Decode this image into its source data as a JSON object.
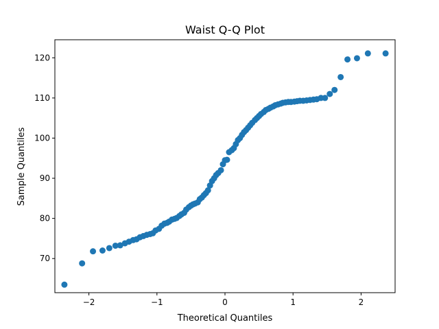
{
  "chart_data": {
    "type": "scatter",
    "title": "Waist Q-Q Plot",
    "xlabel": "Theoretical Quantiles",
    "ylabel": "Sample Quantiles",
    "xlim": [
      -2.5,
      2.5
    ],
    "ylim": [
      61.5,
      124.5
    ],
    "xticks": [
      -2,
      -1,
      0,
      1,
      2
    ],
    "yticks": [
      70,
      80,
      90,
      100,
      110,
      120
    ],
    "xtick_labels": [
      "−2",
      "−1",
      "0",
      "1",
      "2"
    ],
    "ytick_labels": [
      "70",
      "80",
      "90",
      "100",
      "110",
      "120"
    ],
    "grid": false,
    "marker_color": "#1f77b4",
    "series": [
      {
        "x": [
          -2.36,
          -2.1,
          -1.94,
          -1.8,
          -1.7,
          -1.61,
          -1.54,
          -1.47,
          -1.41,
          -1.35,
          -1.3,
          -1.25,
          -1.2,
          -1.15,
          -1.1,
          -1.06,
          -1.02,
          -0.97,
          -0.93,
          -0.89,
          -0.85,
          -0.82,
          -0.78,
          -0.74,
          -0.71,
          -0.67,
          -0.64,
          -0.6,
          -0.57,
          -0.53,
          -0.5,
          -0.47,
          -0.44,
          -0.4,
          -0.37,
          -0.34,
          -0.31,
          -0.28,
          -0.25,
          -0.22,
          -0.19,
          -0.16,
          -0.13,
          -0.1,
          -0.06,
          -0.03,
          0.0,
          0.03,
          0.06,
          0.1,
          0.13,
          0.16,
          0.19,
          0.22,
          0.25,
          0.28,
          0.31,
          0.34,
          0.37,
          0.4,
          0.44,
          0.47,
          0.5,
          0.53,
          0.57,
          0.6,
          0.64,
          0.67,
          0.71,
          0.74,
          0.78,
          0.82,
          0.85,
          0.89,
          0.93,
          0.97,
          1.02,
          1.06,
          1.1,
          1.15,
          1.2,
          1.25,
          1.3,
          1.35,
          1.41,
          1.47,
          1.54,
          1.61,
          1.7,
          1.8,
          1.94,
          2.1,
          2.36
        ],
        "y": [
          63.5,
          68.8,
          71.8,
          72.0,
          72.6,
          73.2,
          73.3,
          73.8,
          74.2,
          74.6,
          74.8,
          75.3,
          75.6,
          75.9,
          76.1,
          76.3,
          77.0,
          77.4,
          78.2,
          78.7,
          78.9,
          79.2,
          79.7,
          79.9,
          80.1,
          80.6,
          81.0,
          81.4,
          82.2,
          82.8,
          83.2,
          83.5,
          83.7,
          84.0,
          84.8,
          85.2,
          85.8,
          86.3,
          87.0,
          88.2,
          89.3,
          90.0,
          90.8,
          91.3,
          92.0,
          93.5,
          94.5,
          94.6,
          96.5,
          97.0,
          97.5,
          98.5,
          99.5,
          100.0,
          100.8,
          101.5,
          102.0,
          102.6,
          103.2,
          103.8,
          104.5,
          105.0,
          105.5,
          106.0,
          106.5,
          107.0,
          107.3,
          107.6,
          107.9,
          108.2,
          108.4,
          108.6,
          108.8,
          108.9,
          109.0,
          109.0,
          109.1,
          109.2,
          109.3,
          109.3,
          109.4,
          109.5,
          109.6,
          109.7,
          110.0,
          110.0,
          111.0,
          112.0,
          115.2,
          119.6,
          119.9,
          121.1,
          121.1
        ]
      }
    ]
  }
}
